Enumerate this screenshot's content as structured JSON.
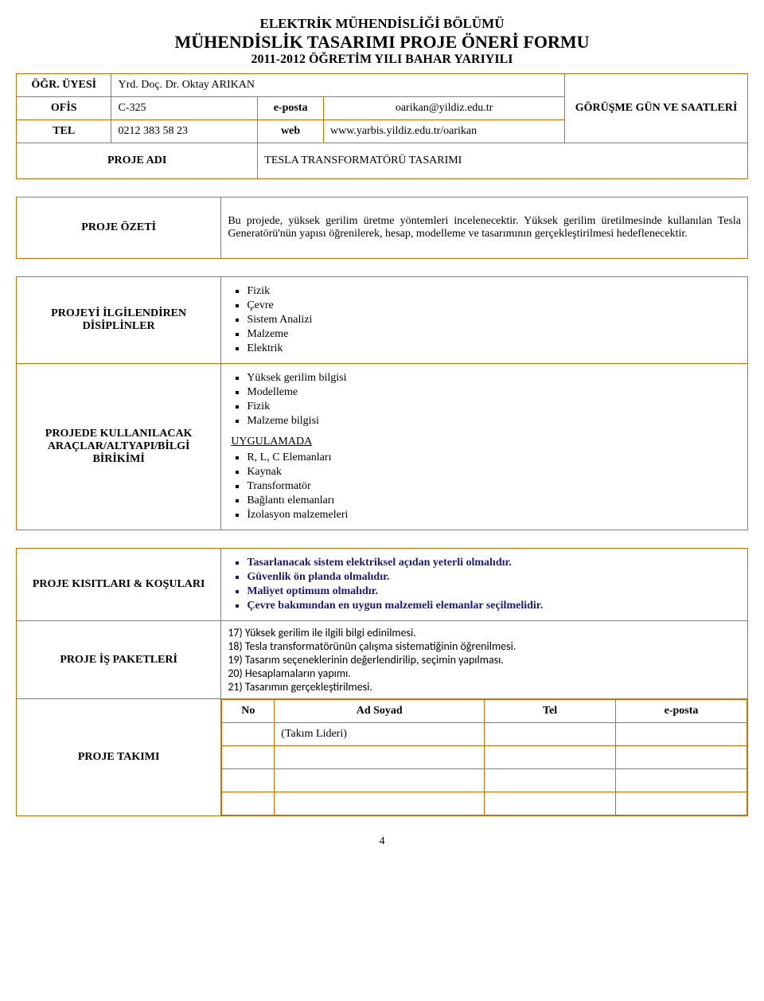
{
  "header": {
    "department": "ELEKTRİK MÜHENDİSLİĞİ BÖLÜMÜ",
    "form_title": "MÜHENDİSLİK TASARIMI PROJE ÖNERİ FORMU",
    "year_line": "2011-2012 ÖĞRETİM YILI BAHAR YARIYILI"
  },
  "info": {
    "ogr_uyesi_label": "ÖĞR. ÜYESİ",
    "ogr_uyesi_value": "Yrd. Doç. Dr. Oktay ARIKAN",
    "gorusme_label": "GÖRÜŞME GÜN VE SAATLERİ",
    "ofis_label": "OFİS",
    "ofis_value": "C-325",
    "eposta_label": "e-posta",
    "eposta_value": "oarikan@yildiz.edu.tr",
    "tel_label": "TEL",
    "tel_value": "0212 383 58 23",
    "web_label": "web",
    "web_value": "www.yarbis.yildiz.edu.tr/oarikan",
    "proje_adi_label": "PROJE ADI",
    "proje_adi_value": "TESLA TRANSFORMATÖRÜ TASARIMI"
  },
  "ozet": {
    "label": "PROJE ÖZETİ",
    "text": "Bu projede, yüksek gerilim üretme yöntemleri incelenecektir. Yüksek gerilim üretilmesinde kullanılan Tesla Generatörü'nün yapısı öğrenilerek, hesap, modelleme ve tasarımının gerçekleştirilmesi hedeflenecektir."
  },
  "disiplinler": {
    "label": "PROJEYİ İLGİLENDİREN DİSİPLİNLER",
    "items": [
      "Fizik",
      "Çevre",
      "Sistem Analizi",
      "Malzeme",
      "Elektrik"
    ]
  },
  "araclar": {
    "label": "PROJEDE KULLANILACAK ARAÇLAR/ALTYAPI/BİLGİ BİRİKİMİ",
    "items_top": [
      "Yüksek gerilim bilgisi",
      "Modelleme",
      "Fizik",
      "Malzeme bilgisi"
    ],
    "uygulama_title": "UYGULAMADA",
    "items_uyg": [
      "R, L, C Elemanları",
      "Kaynak",
      "Transformatör",
      "Bağlantı elemanları",
      "İzolasyon malzemeleri"
    ]
  },
  "kisitlar": {
    "label": "PROJE KISITLARI & KOŞULARI",
    "items": [
      "Tasarlanacak sistem elektriksel açıdan yeterli olmalıdır.",
      "Güvenlik ön planda olmalıdır.",
      "Maliyet optimum olmalıdır.",
      "Çevre bakımından en uygun malzemeli elemanlar seçilmelidir."
    ]
  },
  "is_paketleri": {
    "label": "PROJE İŞ PAKETLERİ",
    "items": [
      "17) Yüksek gerilim ile ilgili bilgi edinilmesi.",
      "18) Tesla transformatörünün çalışma sistematiğinin öğrenilmesi.",
      "19) Tasarım seçeneklerinin değerlendirilip, seçimin yapılması.",
      "20) Hesaplamaların yapımı.",
      "21) Tasarımın gerçekleştirilmesi."
    ]
  },
  "takim": {
    "label": "PROJE TAKIMI",
    "headers": {
      "no": "No",
      "ad": "Ad Soyad",
      "tel": "Tel",
      "eposta": "e-posta"
    },
    "lider_note": "(Takım Lideri)"
  },
  "page_number": "4",
  "colors": {
    "border": "#d96c00",
    "navy": "#1a1a7a",
    "text": "#000000",
    "background": "#ffffff"
  }
}
